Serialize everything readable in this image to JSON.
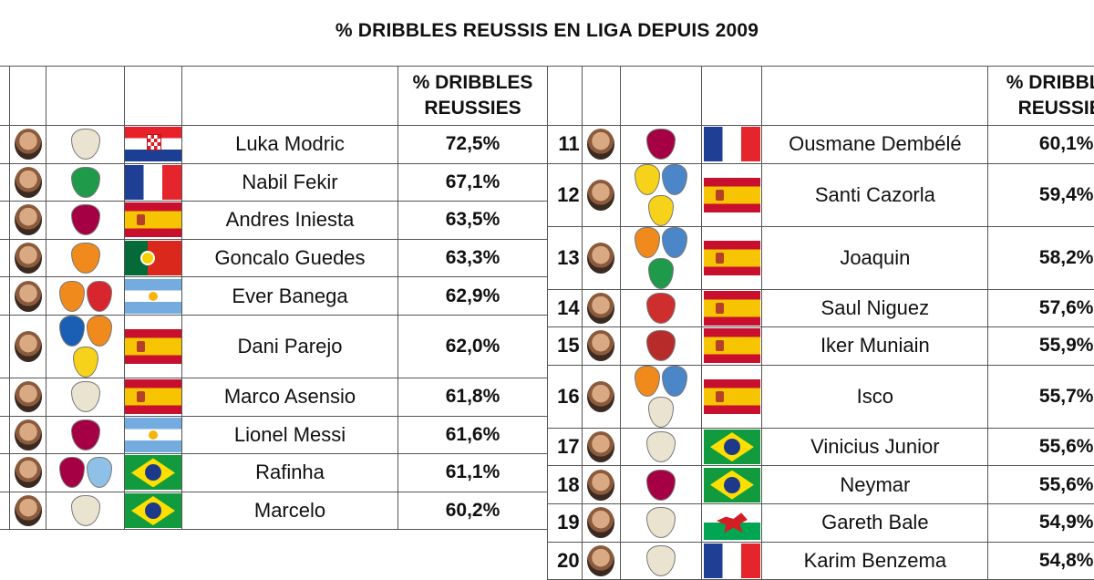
{
  "title": "% DRIBBLES REUSSIS EN LIGA DEPUIS 2009",
  "header": {
    "pct_line1": "% DRIBBLES",
    "pct_line2": "REUSSIES"
  },
  "colors": {
    "border": "#555555",
    "text": "#111111"
  },
  "chart_data": {
    "type": "table",
    "title": "% DRIBBLES REUSSIS EN LIGA DEPUIS 2009",
    "columns": [
      "",
      "",
      "",
      "",
      "",
      "% DRIBBLES REUSSIES"
    ],
    "left": [
      {
        "rank": "",
        "player": "Luka Modric",
        "pct": "72,5%",
        "value": 72.5,
        "clubs": [
          "real-madrid-crest-icon"
        ],
        "flag": "hr"
      },
      {
        "rank": "",
        "player": "Nabil Fekir",
        "pct": "67,1%",
        "value": 67.1,
        "clubs": [
          "real-betis-crest-icon"
        ],
        "flag": "fr"
      },
      {
        "rank": "",
        "player": "Andres Iniesta",
        "pct": "63,5%",
        "value": 63.5,
        "clubs": [
          "barcelona-crest-icon"
        ],
        "flag": "es"
      },
      {
        "rank": "",
        "player": "Goncalo Guedes",
        "pct": "63,3%",
        "value": 63.3,
        "clubs": [
          "valencia-crest-icon"
        ],
        "flag": "pt"
      },
      {
        "rank": "",
        "player": "Ever Banega",
        "pct": "62,9%",
        "value": 62.9,
        "clubs": [
          "valencia-crest-icon",
          "sevilla-crest-icon"
        ],
        "flag": "ar"
      },
      {
        "rank": "",
        "player": "Dani Parejo",
        "pct": "62,0%",
        "value": 62.0,
        "clubs": [
          "getafe-crest-icon",
          "valencia-crest-icon",
          "villarreal-crest-icon"
        ],
        "flag": "es"
      },
      {
        "rank": "",
        "player": "Marco Asensio",
        "pct": "61,8%",
        "value": 61.8,
        "clubs": [
          "real-madrid-crest-icon"
        ],
        "flag": "es"
      },
      {
        "rank": "",
        "player": "Lionel Messi",
        "pct": "61,6%",
        "value": 61.6,
        "clubs": [
          "barcelona-crest-icon"
        ],
        "flag": "ar"
      },
      {
        "rank": "",
        "player": "Rafinha",
        "pct": "61,1%",
        "value": 61.1,
        "clubs": [
          "barcelona-crest-icon",
          "celta-crest-icon"
        ],
        "flag": "br"
      },
      {
        "rank": "",
        "player": "Marcelo",
        "pct": "60,2%",
        "value": 60.2,
        "clubs": [
          "real-madrid-crest-icon"
        ],
        "flag": "br"
      }
    ],
    "right": [
      {
        "rank": "11",
        "player": "Ousmane Dembélé",
        "pct": "60,1%",
        "value": 60.1,
        "clubs": [
          "barcelona-crest-icon"
        ],
        "flag": "fr"
      },
      {
        "rank": "12",
        "player": "Santi Cazorla",
        "pct": "59,4%",
        "value": 59.4,
        "clubs": [
          "villarreal-crest-icon",
          "malaga-crest-icon",
          "villarreal-crest-icon"
        ],
        "flag": "es"
      },
      {
        "rank": "13",
        "player": "Joaquin",
        "pct": "58,2%",
        "value": 58.2,
        "clubs": [
          "valencia-crest-icon",
          "malaga-crest-icon",
          "real-betis-crest-icon"
        ],
        "flag": "es"
      },
      {
        "rank": "14",
        "player": "Saul Niguez",
        "pct": "57,6%",
        "value": 57.6,
        "clubs": [
          "atletico-crest-icon"
        ],
        "flag": "es"
      },
      {
        "rank": "15",
        "player": "Iker Muniain",
        "pct": "55,9%",
        "value": 55.9,
        "clubs": [
          "athletic-crest-icon"
        ],
        "flag": "es"
      },
      {
        "rank": "16",
        "player": "Isco",
        "pct": "55,7%",
        "value": 55.7,
        "clubs": [
          "valencia-crest-icon",
          "malaga-crest-icon",
          "real-madrid-crest-icon"
        ],
        "flag": "es"
      },
      {
        "rank": "17",
        "player": "Vinicius Junior",
        "pct": "55,6%",
        "value": 55.6,
        "clubs": [
          "real-madrid-crest-icon"
        ],
        "flag": "br"
      },
      {
        "rank": "18",
        "player": "Neymar",
        "pct": "55,6%",
        "value": 55.6,
        "clubs": [
          "barcelona-crest-icon"
        ],
        "flag": "br"
      },
      {
        "rank": "19",
        "player": "Gareth Bale",
        "pct": "54,9%",
        "value": 54.9,
        "clubs": [
          "real-madrid-crest-icon"
        ],
        "flag": "wa"
      },
      {
        "rank": "20",
        "player": "Karim Benzema",
        "pct": "54,8%",
        "value": 54.8,
        "clubs": [
          "real-madrid-crest-icon"
        ],
        "flag": "fr"
      }
    ],
    "crest_colors": {
      "real-madrid-crest-icon": "#e9e3cf",
      "real-betis-crest-icon": "#1f9a4a",
      "barcelona-crest-icon": "#a50044",
      "valencia-crest-icon": "#f08a1c",
      "sevilla-crest-icon": "#d8262e",
      "getafe-crest-icon": "#1b5fb5",
      "villarreal-crest-icon": "#f6d21a",
      "celta-crest-icon": "#8fc1e8",
      "malaga-crest-icon": "#4a86c8",
      "atletico-crest-icon": "#cf2e2e",
      "athletic-crest-icon": "#b82b2b"
    }
  }
}
